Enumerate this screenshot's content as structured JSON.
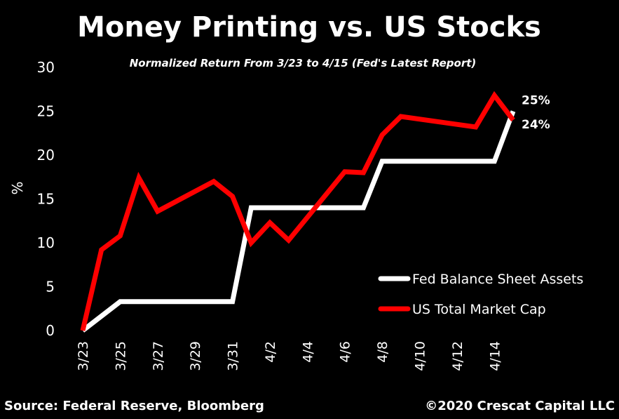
{
  "colors": {
    "background": "#000000",
    "text": "#ffffff",
    "fed_series": "#ffffff",
    "market_series": "#ff0000"
  },
  "chart_data": {
    "type": "line",
    "title": "Money Printing vs. US Stocks",
    "subtitle": "Normalized Return From 3/23 to 4/15 (Fed's Latest Report)",
    "xlabel": "",
    "ylabel": "%",
    "ylim": [
      0,
      30
    ],
    "yticks": [
      0,
      5,
      10,
      15,
      20,
      25,
      30
    ],
    "x": [
      "3/23",
      "3/24",
      "3/25",
      "3/26",
      "3/27",
      "3/28",
      "3/29",
      "3/30",
      "3/31",
      "4/1",
      "4/2",
      "4/3",
      "4/4",
      "4/5",
      "4/6",
      "4/7",
      "4/8",
      "4/9",
      "4/10",
      "4/11",
      "4/12",
      "4/13",
      "4/14",
      "4/15"
    ],
    "xticks": [
      "3/23",
      "3/25",
      "3/27",
      "3/29",
      "3/31",
      "4/2",
      "4/4",
      "4/6",
      "4/8",
      "4/10",
      "4/12",
      "4/14"
    ],
    "grid": false,
    "legend_position": "bottom-right",
    "series": [
      {
        "name": "Fed Balance Sheet Assets",
        "color": "#ffffff",
        "points": [
          [
            "3/23",
            0.0
          ],
          [
            "3/25",
            3.3
          ],
          [
            "3/31",
            3.3
          ],
          [
            "4/1",
            14.0
          ],
          [
            "4/7",
            14.0
          ],
          [
            "4/8",
            19.3
          ],
          [
            "4/14",
            19.3
          ],
          [
            "4/15",
            25.0
          ]
        ],
        "end_label": "25%"
      },
      {
        "name": "US Total Market Cap",
        "color": "#ff0000",
        "points": [
          [
            "3/23",
            0.0
          ],
          [
            "3/24",
            9.2
          ],
          [
            "3/25",
            10.8
          ],
          [
            "3/26",
            17.4
          ],
          [
            "3/27",
            13.6
          ],
          [
            "3/30",
            17.0
          ],
          [
            "3/31",
            15.3
          ],
          [
            "4/1",
            10.0
          ],
          [
            "4/2",
            12.3
          ],
          [
            "4/3",
            10.3
          ],
          [
            "4/6",
            18.1
          ],
          [
            "4/7",
            18.0
          ],
          [
            "4/8",
            22.3
          ],
          [
            "4/9",
            24.4
          ],
          [
            "4/13",
            23.2
          ],
          [
            "4/14",
            26.8
          ],
          [
            "4/15",
            24.0
          ]
        ],
        "end_label": "24%"
      }
    ]
  },
  "footer": {
    "source": "Source: Federal Reserve, Bloomberg",
    "copyright": "©2020 Crescat Capital LLC"
  }
}
